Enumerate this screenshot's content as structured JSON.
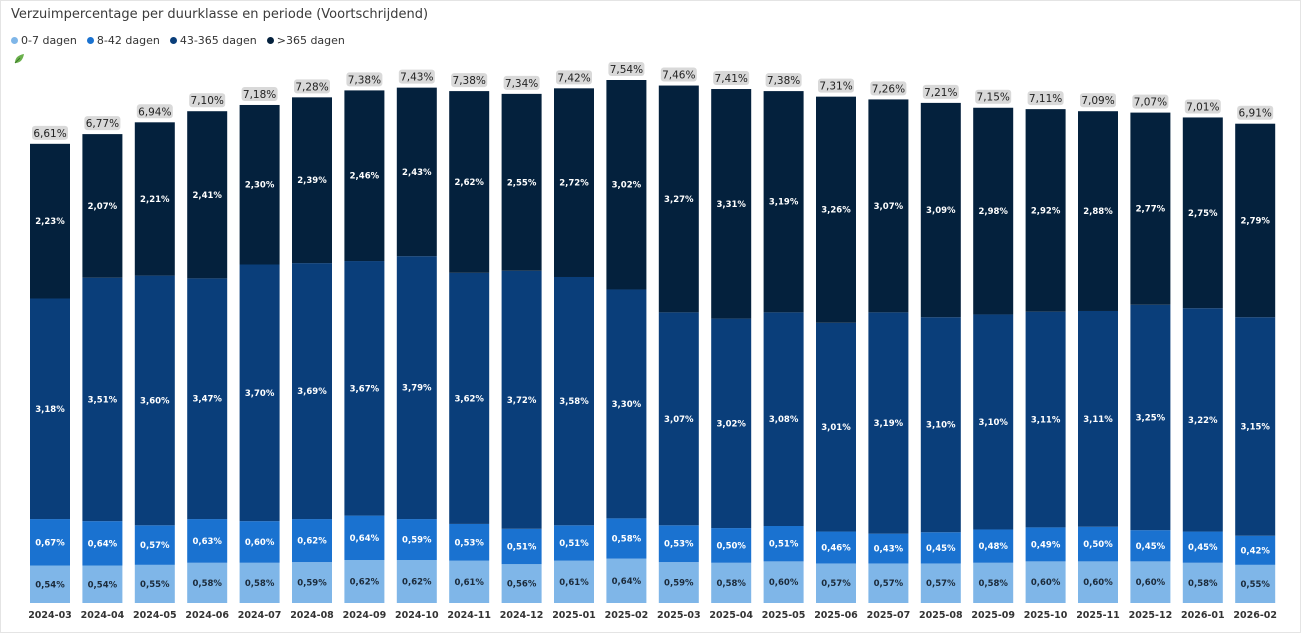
{
  "header": {
    "title": "Verzuimpercentage per duurklasse en periode (Voortschrijdend)"
  },
  "legend": {
    "items": [
      {
        "label": "0-7 dagen",
        "color": "#7fb6e8"
      },
      {
        "label": "8-42 dagen",
        "color": "#1a72d0"
      },
      {
        "label": "43-365 dagen",
        "color": "#0a3e7a"
      },
      {
        "label": ">365 dagen",
        "color": "#04213d"
      }
    ]
  },
  "icons": {
    "leaf": "leaf-icon"
  },
  "chart_data": {
    "type": "bar",
    "stacked": true,
    "title": "Verzuimpercentage per duurklasse en periode (Voortschrijdend)",
    "categories": [
      "2024-03",
      "2024-04",
      "2024-05",
      "2024-06",
      "2024-07",
      "2024-08",
      "2024-09",
      "2024-10",
      "2024-11",
      "2024-12",
      "2025-01",
      "2025-02",
      "2025-03",
      "2025-04",
      "2025-05",
      "2025-06",
      "2025-07",
      "2025-08",
      "2025-09",
      "2025-10",
      "2025-11",
      "2025-12",
      "2026-01",
      "2026-02"
    ],
    "series": [
      {
        "name": "0-7 dagen",
        "color": "#7fb6e8",
        "values": [
          0.54,
          0.54,
          0.55,
          0.58,
          0.58,
          0.59,
          0.62,
          0.62,
          0.61,
          0.56,
          0.61,
          0.64,
          0.59,
          0.58,
          0.6,
          0.57,
          0.57,
          0.57,
          0.58,
          0.6,
          0.6,
          0.6,
          0.58,
          0.55
        ],
        "labels": [
          "0,54%",
          "0,54%",
          "0,55%",
          "0,58%",
          "0,58%",
          "0,59%",
          "0,62%",
          "0,62%",
          "0,61%",
          "0,56%",
          "0,61%",
          "0,64%",
          "0,59%",
          "0,58%",
          "0,60%",
          "0,57%",
          "0,57%",
          "0,57%",
          "0,58%",
          "0,60%",
          "0,60%",
          "0,60%",
          "0,58%",
          "0,55%"
        ]
      },
      {
        "name": "8-42 dagen",
        "color": "#1a72d0",
        "values": [
          0.67,
          0.64,
          0.57,
          0.63,
          0.6,
          0.62,
          0.64,
          0.59,
          0.53,
          0.51,
          0.51,
          0.58,
          0.53,
          0.5,
          0.51,
          0.46,
          0.43,
          0.45,
          0.48,
          0.49,
          0.5,
          0.45,
          0.45,
          0.42
        ],
        "labels": [
          "0,67%",
          "0,64%",
          "0,57%",
          "0,63%",
          "0,60%",
          "0,62%",
          "0,64%",
          "0,59%",
          "0,53%",
          "0,51%",
          "0,51%",
          "0,58%",
          "0,53%",
          "0,50%",
          "0,51%",
          "0,46%",
          "0,43%",
          "0,45%",
          "0,48%",
          "0,49%",
          "0,50%",
          "0,45%",
          "0,45%",
          "0,42%"
        ]
      },
      {
        "name": "43-365 dagen",
        "color": "#0a3e7a",
        "values": [
          3.18,
          3.51,
          3.6,
          3.47,
          3.7,
          3.69,
          3.67,
          3.79,
          3.62,
          3.72,
          3.58,
          3.3,
          3.07,
          3.02,
          3.08,
          3.01,
          3.19,
          3.1,
          3.1,
          3.11,
          3.11,
          3.25,
          3.22,
          3.15
        ],
        "labels": [
          "3,18%",
          "3,51%",
          "3,60%",
          "3,47%",
          "3,70%",
          "3,69%",
          "3,67%",
          "3,79%",
          "3,62%",
          "3,72%",
          "3,58%",
          "3,30%",
          "3,07%",
          "3,02%",
          "3,08%",
          "3,01%",
          "3,19%",
          "3,10%",
          "3,10%",
          "3,11%",
          "3,11%",
          "3,25%",
          "3,22%",
          "3,15%"
        ]
      },
      {
        "name": ">365 dagen",
        "color": "#04213d",
        "values": [
          2.23,
          2.07,
          2.21,
          2.41,
          2.3,
          2.39,
          2.46,
          2.43,
          2.62,
          2.55,
          2.72,
          3.02,
          3.27,
          3.31,
          3.19,
          3.26,
          3.07,
          3.09,
          2.98,
          2.92,
          2.88,
          2.77,
          2.75,
          2.79
        ],
        "labels": [
          "2,23%",
          "2,07%",
          "2,21%",
          "2,41%",
          "2,30%",
          "2,39%",
          "2,46%",
          "2,43%",
          "2,62%",
          "2,55%",
          "2,72%",
          "3,02%",
          "3,27%",
          "3,31%",
          "3,19%",
          "3,26%",
          "3,07%",
          "3,09%",
          "2,98%",
          "2,92%",
          "2,88%",
          "2,77%",
          "2,75%",
          "2,79%"
        ]
      }
    ],
    "totals": [
      6.61,
      6.77,
      6.94,
      7.1,
      7.18,
      7.28,
      7.38,
      7.43,
      7.38,
      7.34,
      7.42,
      7.54,
      7.46,
      7.41,
      7.38,
      7.31,
      7.26,
      7.21,
      7.15,
      7.11,
      7.09,
      7.07,
      7.01,
      6.91
    ],
    "total_labels": [
      "6,61%",
      "6,77%",
      "6,94%",
      "7,10%",
      "7,18%",
      "7,28%",
      "7,38%",
      "7,43%",
      "7,38%",
      "7,34%",
      "7,42%",
      "7,54%",
      "7,46%",
      "7,41%",
      "7,38%",
      "7,31%",
      "7,26%",
      "7,21%",
      "7,15%",
      "7,11%",
      "7,09%",
      "7,07%",
      "7,01%",
      "6,91%"
    ],
    "xlabel": "",
    "ylabel": "",
    "ylim": [
      0,
      7.54
    ],
    "grid": false,
    "legend_position": "top-left"
  }
}
